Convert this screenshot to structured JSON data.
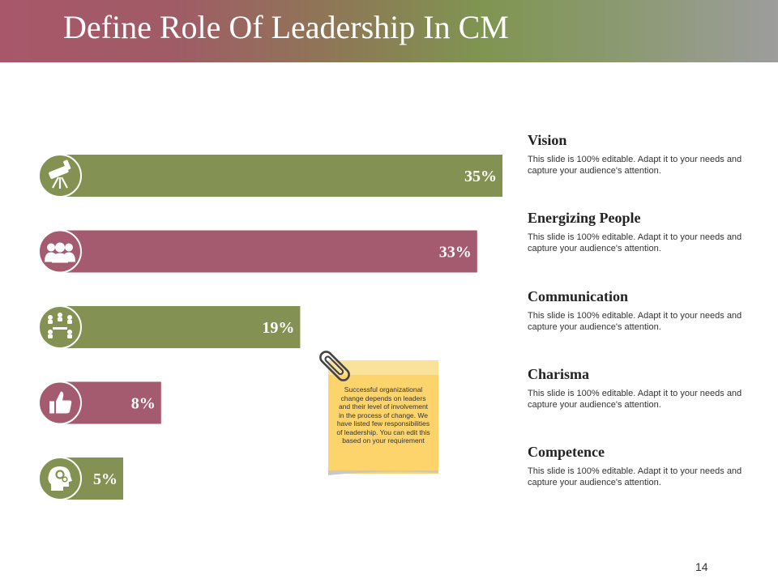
{
  "slide": {
    "title": "Define Role Of Leadership In CM",
    "page_number": "14"
  },
  "colors": {
    "green": "#839152",
    "maroon": "#a45b70",
    "note_yellow": "#fcd46b",
    "white": "#ffffff"
  },
  "chart_data": {
    "type": "bar",
    "orientation": "horizontal",
    "title": "",
    "categories": [
      "Vision",
      "Energizing People",
      "Communication",
      "Charisma",
      "Competence"
    ],
    "values": [
      35,
      33,
      19,
      8,
      5
    ],
    "value_labels": [
      "35%",
      "33%",
      "19%",
      "8%",
      "5%"
    ],
    "unit": "%",
    "xlim": [
      0,
      35
    ],
    "bar_colors": [
      "#839152",
      "#a45b70",
      "#839152",
      "#a45b70",
      "#839152"
    ],
    "icons": [
      "telescope-icon",
      "people-group-icon",
      "meeting-icon",
      "thumbs-up-icon",
      "head-gears-icon"
    ],
    "grid": false,
    "legend": "none"
  },
  "items": [
    {
      "title": "Vision",
      "description": "This slide is 100% editable. Adapt it to your needs and capture your audience's attention."
    },
    {
      "title": "Energizing People",
      "description": "This slide is 100% editable. Adapt it to your needs and capture your audience's attention."
    },
    {
      "title": "Communication",
      "description": "This slide is 100% editable. Adapt it to your needs and capture your audience's attention."
    },
    {
      "title": "Charisma",
      "description": "This slide is 100% editable. Adapt it to your needs and capture your audience's attention."
    },
    {
      "title": "Competence",
      "description": "This slide is 100% editable. Adapt it to your needs and capture your audience's attention."
    }
  ],
  "note": {
    "text": "Successful organizational change depends on leaders and their level of involvement in the process of change. We have listed few responsibilities of leadership. You can edit this based on your requirement"
  }
}
